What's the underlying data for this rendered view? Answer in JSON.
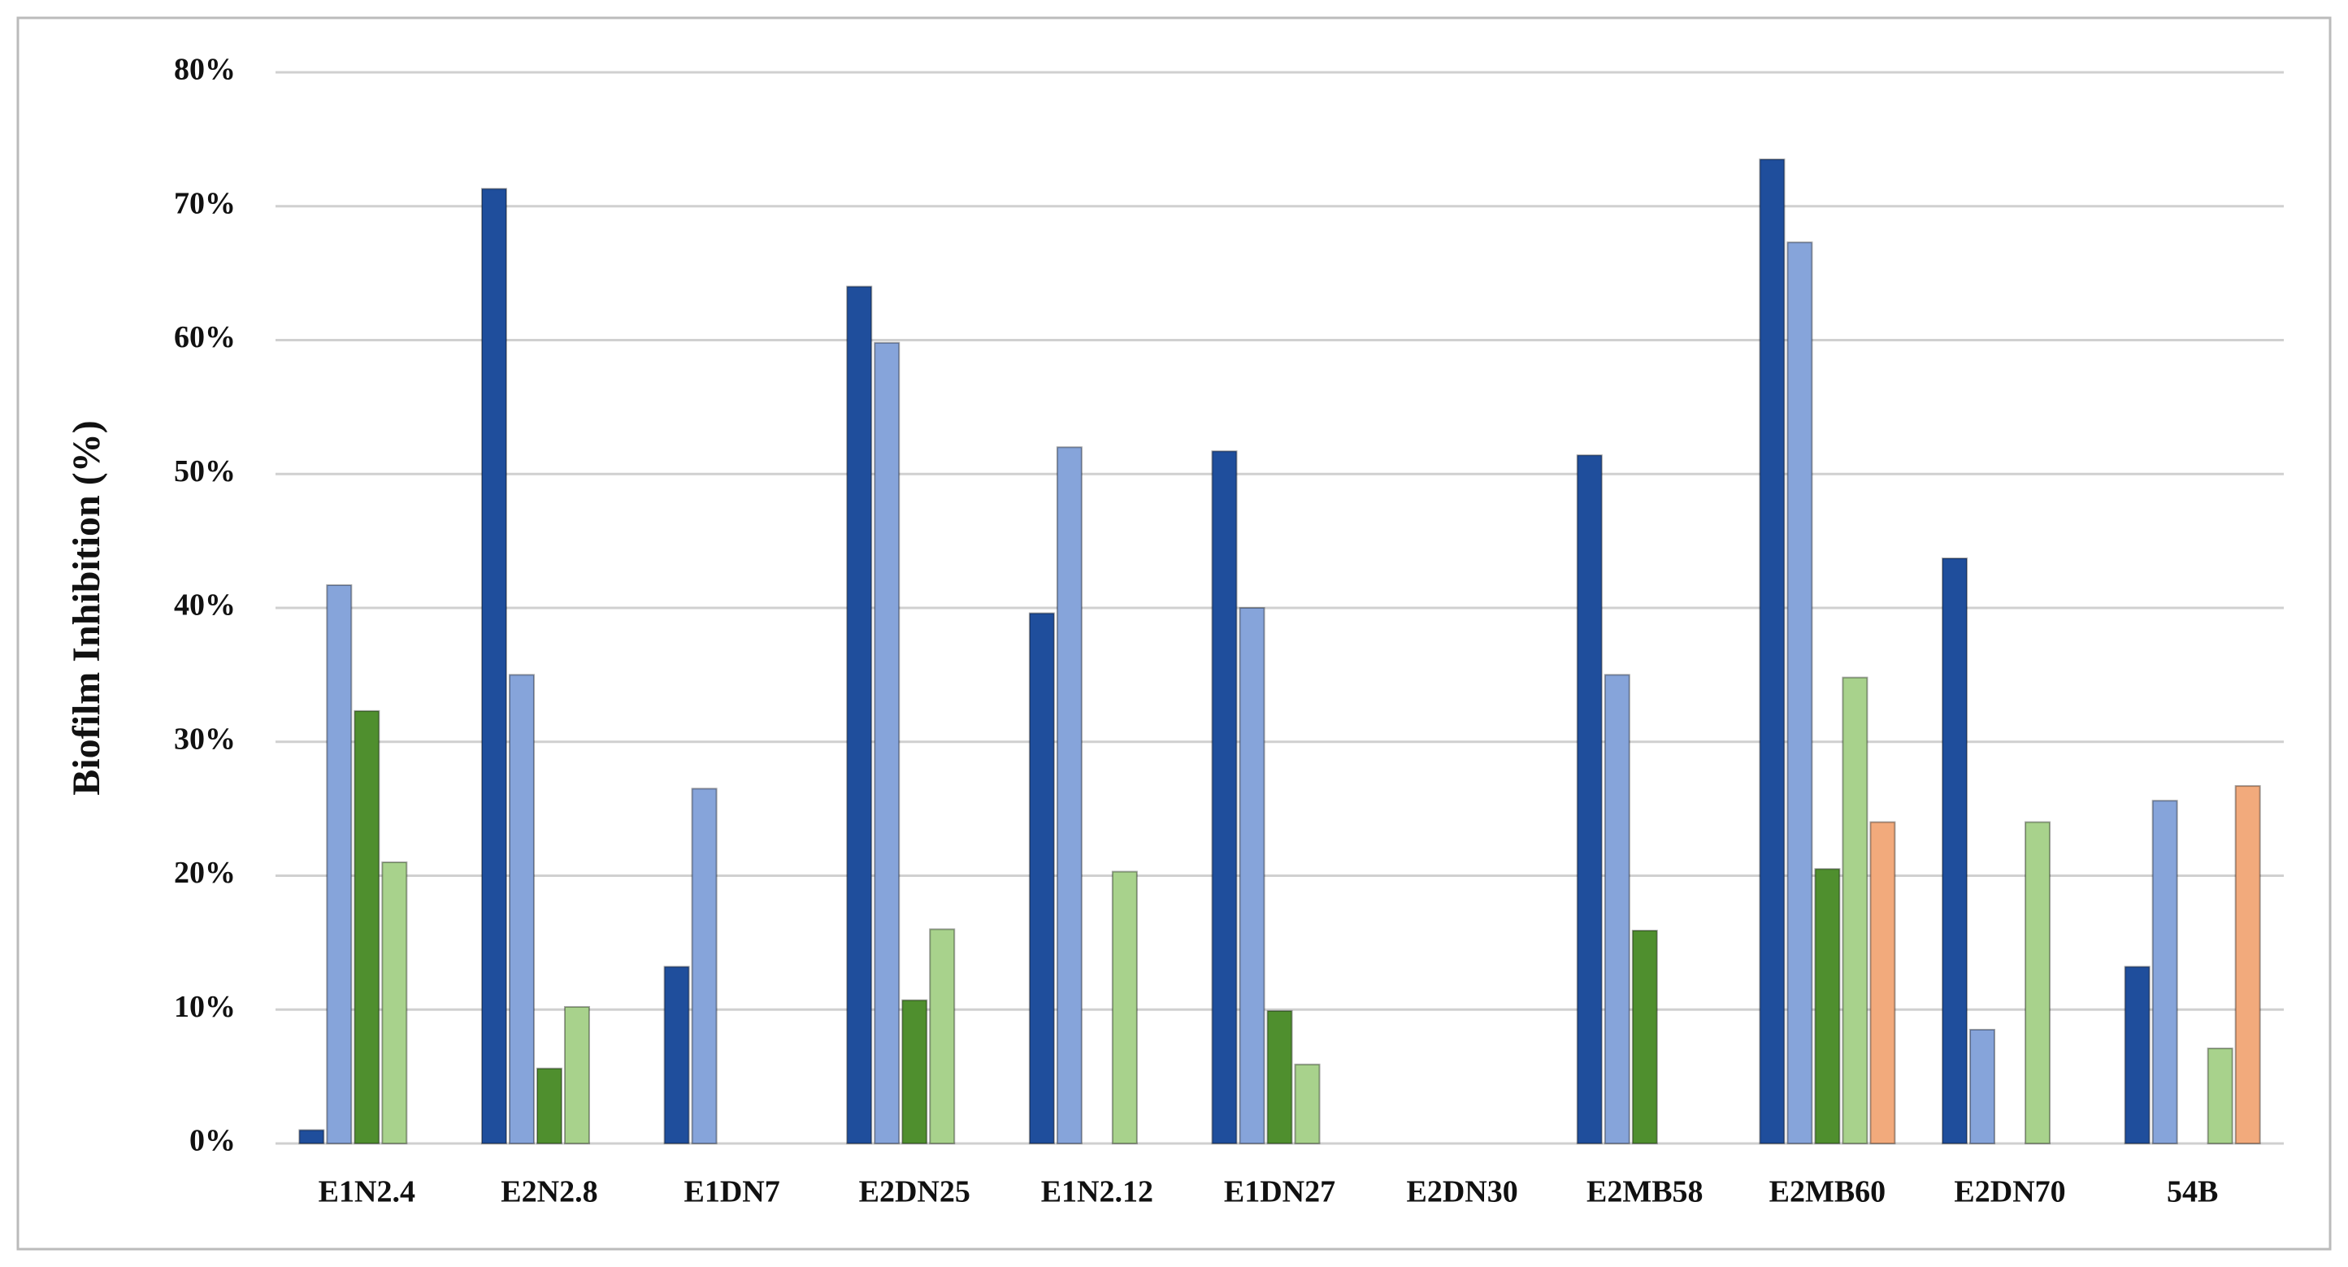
{
  "chart_data": {
    "type": "bar",
    "y_label": "Biofilm Inhibition (%)",
    "categories": [
      "E1N2.4",
      "E2N2.8",
      "E1DN7",
      "E2DN25",
      "E1N2.12",
      "E1DN27",
      "E2DN30",
      "E2MB58",
      "E2MB60",
      "E2DN70",
      "54B"
    ],
    "series": [
      {
        "color": "#1f4e9c",
        "values": [
          1,
          71.3,
          13.2,
          64,
          39.6,
          51.7,
          null,
          51.4,
          73.5,
          43.7,
          13.2
        ]
      },
      {
        "color": "#86a4da",
        "values": [
          41.7,
          35,
          26.5,
          59.8,
          52,
          40,
          null,
          35,
          67.3,
          8.5,
          25.6
        ]
      },
      {
        "color": "#4f8f2e",
        "values": [
          32.3,
          5.6,
          null,
          10.7,
          null,
          9.9,
          null,
          15.9,
          20.5,
          null,
          null
        ]
      },
      {
        "color": "#a8d28c",
        "values": [
          21,
          10.2,
          null,
          16,
          20.3,
          5.9,
          null,
          null,
          34.8,
          24,
          7.1
        ]
      },
      {
        "color": "#f2aa7c",
        "values": [
          null,
          null,
          null,
          null,
          null,
          null,
          null,
          null,
          24,
          null,
          26.7
        ]
      }
    ],
    "ylim": [
      0,
      80
    ],
    "yticks": [
      {
        "value": 0,
        "label": "0%"
      },
      {
        "value": 10,
        "label": "10%"
      },
      {
        "value": 20,
        "label": "20%"
      },
      {
        "value": 30,
        "label": "30%"
      },
      {
        "value": 40,
        "label": "40%"
      },
      {
        "value": 50,
        "label": "50%"
      },
      {
        "value": 60,
        "label": "60%"
      },
      {
        "value": 70,
        "label": "70%"
      },
      {
        "value": 80,
        "label": "80%"
      }
    ],
    "grid": true
  }
}
